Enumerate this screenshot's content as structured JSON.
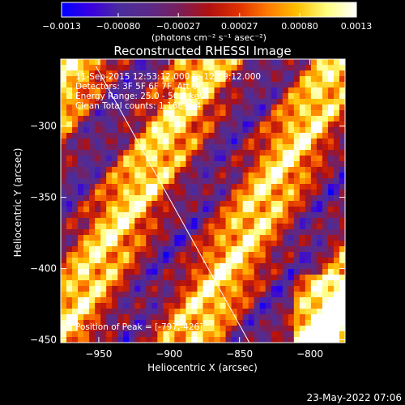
{
  "chart_data": {
    "type": "heatmap",
    "title": "Reconstructed RHESSI Image",
    "xlabel": "Heliocentric X (arcsec)",
    "ylabel": "Heliocentric Y (arcsec)",
    "xlim": [
      -977,
      -775
    ],
    "ylim": [
      -452,
      -253
    ],
    "x_ticks": [
      -950,
      -900,
      -850,
      -800
    ],
    "y_ticks": [
      -300,
      -350,
      -400,
      -450
    ],
    "x_tick_labels": [
      "−950",
      "−900",
      "−850",
      "−800"
    ],
    "y_tick_labels": [
      "−300",
      "−350",
      "−400",
      "−450"
    ],
    "colorbar": {
      "min": -0.0013,
      "max": 0.0013,
      "tick_values": [
        -0.0013,
        -0.0008,
        -0.00027,
        0.00027,
        0.0008,
        0.0013
      ],
      "tick_labels": [
        "−0.0013",
        "−0.00080",
        "−0.00027",
        "0.00027",
        "0.00080",
        "0.0013"
      ],
      "units": "(photons cm⁻² s⁻¹ asec⁻²)",
      "stops": [
        "#0000ff",
        "#3a00e0",
        "#4b2c9c",
        "#5b2a88",
        "#7a1e5a",
        "#b01010",
        "#e03000",
        "#ff7a00",
        "#ffc000",
        "#ffff80",
        "#ffffff"
      ]
    },
    "annotations": [
      "11-Sep-2015 12:53:12.000 to 12:59:12.000",
      "Detectors: 3F 5F 6F 7F, Att 0",
      "Energy Range: 25.0 - 50.0 keV",
      "Clean     Total counts: 1.16E+04"
    ],
    "peak_label": "Position of Peak = [-797,-426]",
    "limb_line": {
      "x": [
        -952,
        -843
      ],
      "y": [
        -258,
        -452
      ]
    },
    "grid": false
  },
  "footer": {
    "timestamp": "23-May-2022 07:06"
  }
}
